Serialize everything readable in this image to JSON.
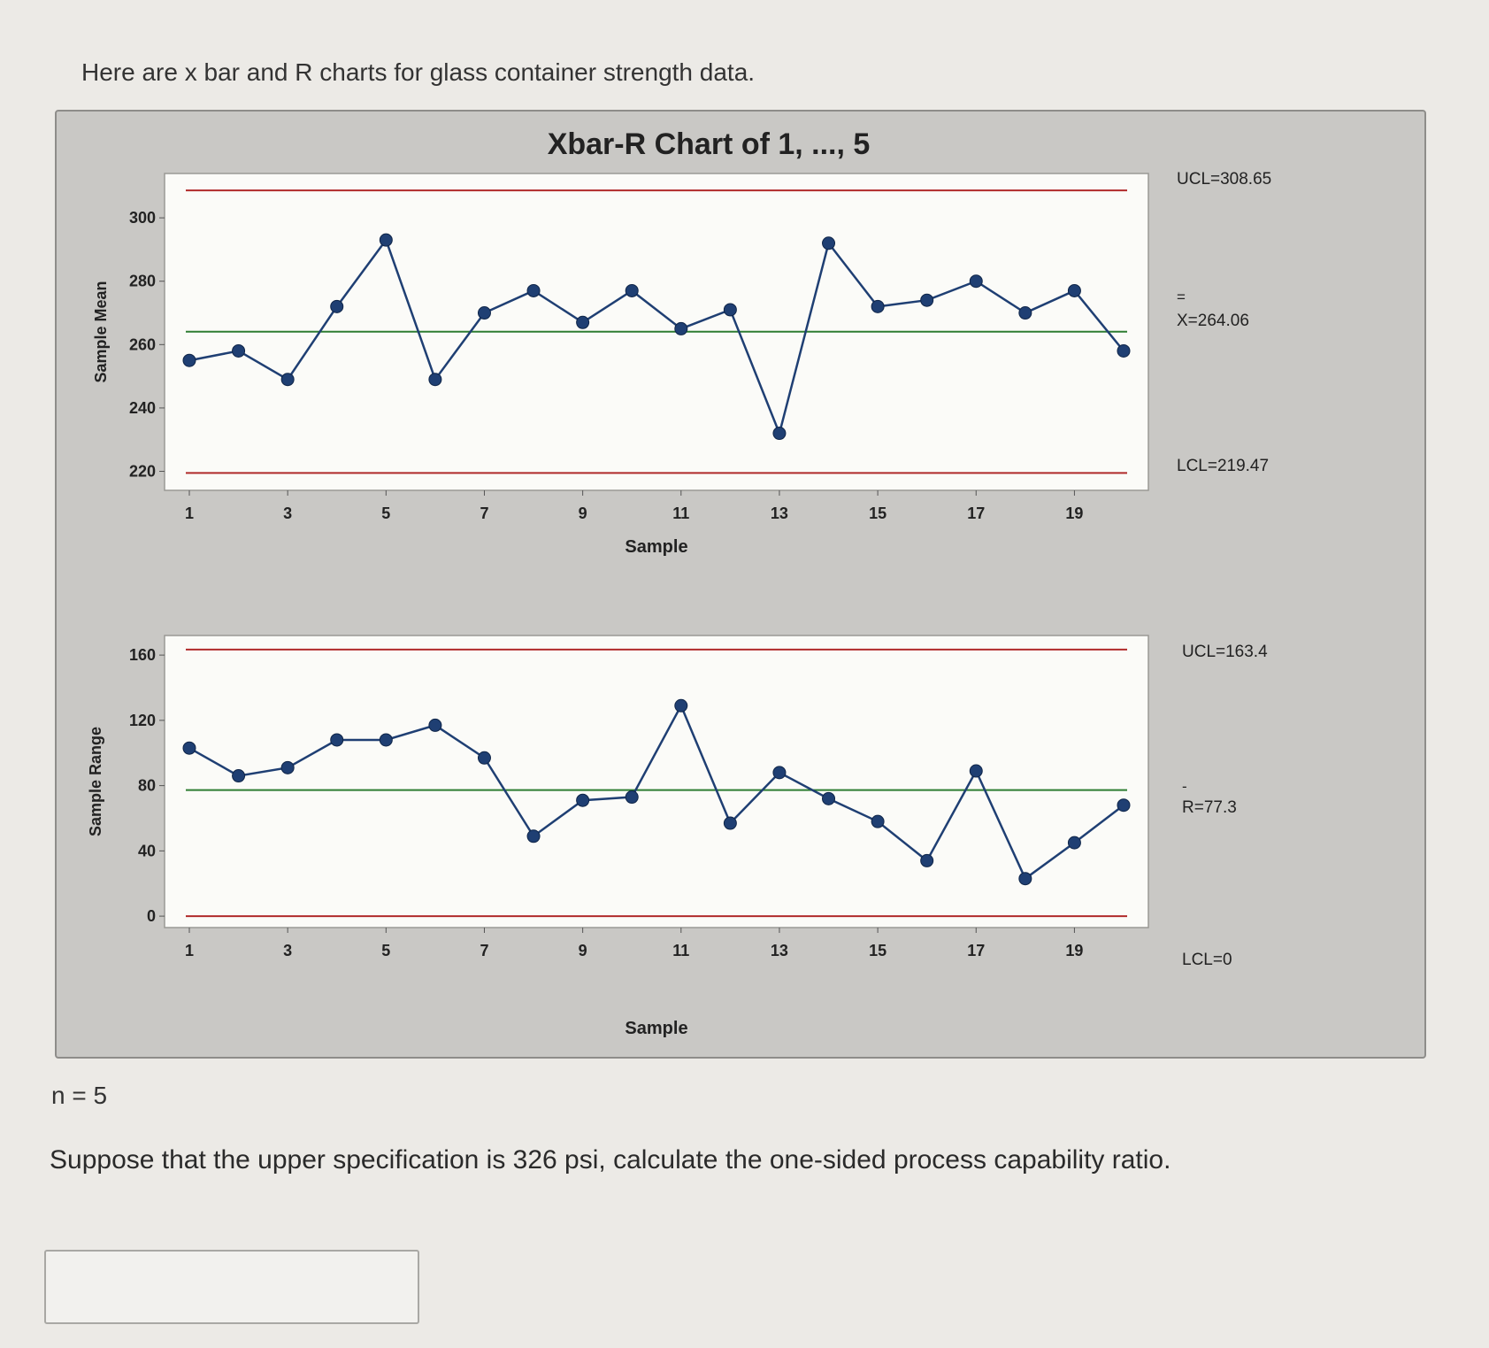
{
  "question": {
    "intro": "Here are x bar and R charts for glass container strength data.",
    "n_label": "n = 5",
    "prompt": "Suppose that the upper specification is 326 psi, calculate the one-sided process capability ratio.",
    "answer_value": ""
  },
  "colors": {
    "control_limit": "#b02a2a",
    "center_line": "#2e7d32",
    "series": "#1f3f73",
    "plot_bg": "#fbfbf8"
  },
  "chart_data": [
    {
      "type": "line",
      "title": "Xbar-R Chart of 1, ..., 5",
      "ylabel": "Sample Mean",
      "xlabel": "Sample",
      "x": [
        1,
        2,
        3,
        4,
        5,
        6,
        7,
        8,
        9,
        10,
        11,
        12,
        13,
        14,
        15,
        16,
        17,
        18,
        19,
        20
      ],
      "x_tick_labels": [
        "1",
        "3",
        "5",
        "7",
        "9",
        "11",
        "13",
        "15",
        "17",
        "19"
      ],
      "y_tick_labels": [
        "220",
        "240",
        "260",
        "280",
        "300"
      ],
      "series": [
        {
          "values": [
            255,
            258,
            249,
            272,
            293,
            249,
            270,
            277,
            267,
            277,
            265,
            271,
            232,
            292,
            272,
            274,
            280,
            270,
            277,
            258
          ]
        }
      ],
      "ylim": [
        214,
        314
      ],
      "ucl": {
        "value": 308.65,
        "label": "UCL=308.65"
      },
      "center": {
        "value": 264.06,
        "label": "X=264.06",
        "overbar": "="
      },
      "lcl": {
        "value": 219.47,
        "label": "LCL=219.47"
      },
      "grid": false
    },
    {
      "type": "line",
      "ylabel": "Sample Range",
      "xlabel": "Sample",
      "x": [
        1,
        2,
        3,
        4,
        5,
        6,
        7,
        8,
        9,
        10,
        11,
        12,
        13,
        14,
        15,
        16,
        17,
        18,
        19,
        20
      ],
      "x_tick_labels": [
        "1",
        "3",
        "5",
        "7",
        "9",
        "11",
        "13",
        "15",
        "17",
        "19"
      ],
      "y_tick_labels": [
        "0",
        "40",
        "80",
        "120",
        "160"
      ],
      "series": [
        {
          "values": [
            103,
            86,
            91,
            108,
            108,
            117,
            97,
            49,
            71,
            73,
            129,
            57,
            88,
            72,
            58,
            34,
            89,
            23,
            45,
            68
          ]
        }
      ],
      "ylim": [
        -7,
        172
      ],
      "ucl": {
        "value": 163.4,
        "label": "UCL=163.4"
      },
      "center": {
        "value": 77.3,
        "label": "R=77.3",
        "overbar": "-"
      },
      "lcl": {
        "value": 0,
        "label": "LCL=0"
      },
      "grid": false
    }
  ]
}
